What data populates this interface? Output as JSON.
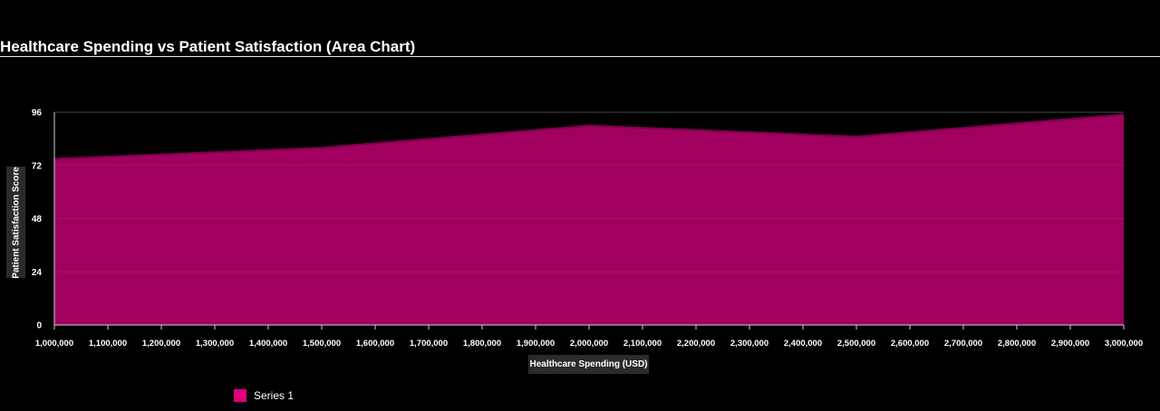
{
  "colors": {
    "area_fill": "#a10060",
    "area_line": "#7a0049",
    "legend": "#e0007a",
    "grid": "#3a3a3a"
  },
  "chart_data": {
    "type": "area",
    "title": "Healthcare Spending vs Patient Satisfaction (Area Chart)",
    "xlabel": "Healthcare Spending (USD)",
    "ylabel": "Patient Satisfaction Score",
    "xlim": [
      1000000,
      3000000
    ],
    "ylim": [
      0,
      96
    ],
    "x_ticks": [
      "1,000,000",
      "1,100,000",
      "1,200,000",
      "1,300,000",
      "1,400,000",
      "1,500,000",
      "1,600,000",
      "1,700,000",
      "1,800,000",
      "1,900,000",
      "2,000,000",
      "2,100,000",
      "2,200,000",
      "2,300,000",
      "2,400,000",
      "2,500,000",
      "2,600,000",
      "2,700,000",
      "2,800,000",
      "2,900,000",
      "3,000,000"
    ],
    "y_ticks": [
      "0",
      "24",
      "48",
      "72",
      "96"
    ],
    "grid": true,
    "legend_position": "bottom-left",
    "series": [
      {
        "name": "Series 1",
        "x": [
          1000000,
          1500000,
          2000000,
          2500000,
          3000000
        ],
        "values": [
          75,
          80,
          90,
          85,
          95
        ]
      }
    ]
  }
}
